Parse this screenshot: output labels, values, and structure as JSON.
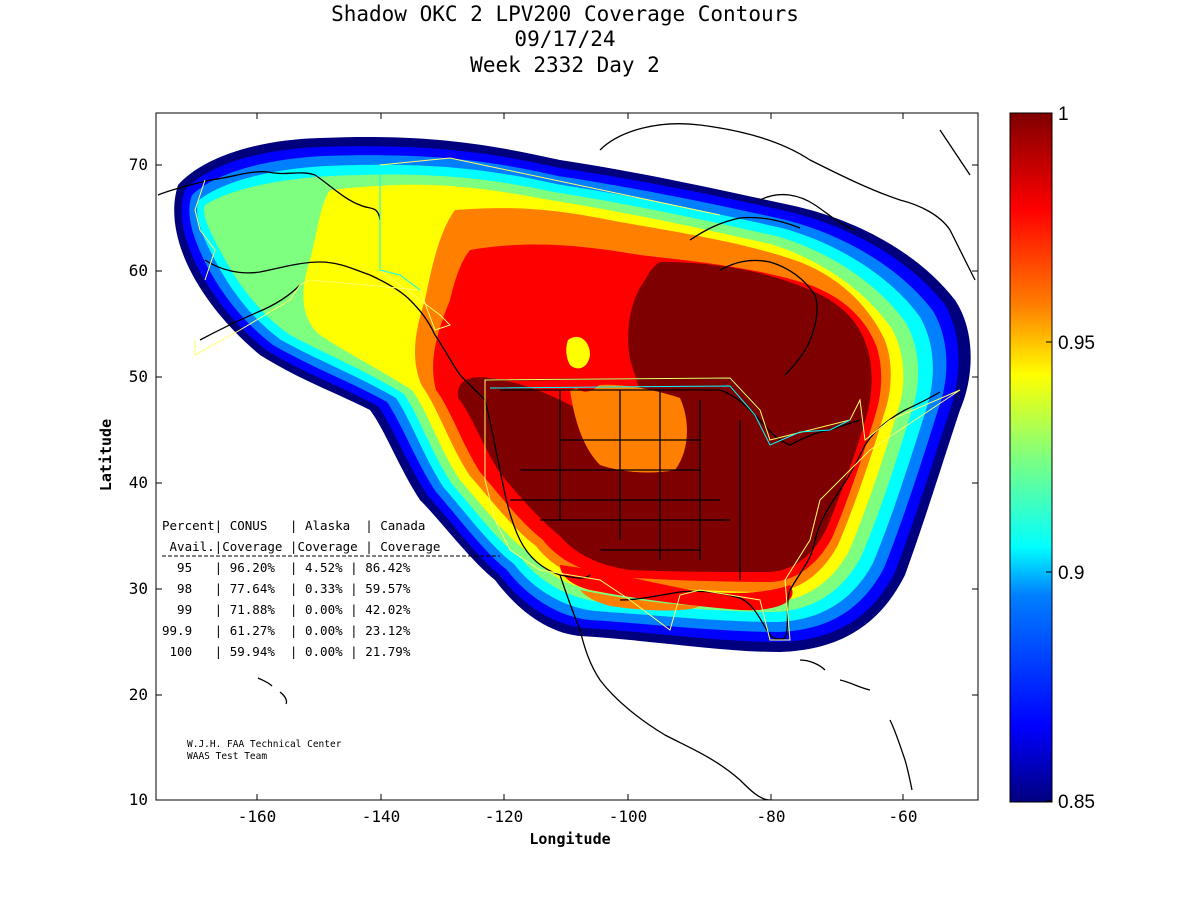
{
  "title": {
    "line1": "Shadow OKC 2 LPV200 Coverage Contours",
    "line2": "09/17/24",
    "line3": "Week 2332 Day 2"
  },
  "axes": {
    "xlabel": "Longitude",
    "ylabel": "Latitude",
    "xticks": [
      "-160",
      "-140",
      "-120",
      "-100",
      "-80",
      "-60"
    ],
    "yticks": [
      "70",
      "60",
      "50",
      "40",
      "30",
      "20",
      "10"
    ],
    "xrange": [
      -175,
      -50
    ],
    "yrange": [
      10,
      75
    ]
  },
  "colorbar": {
    "ticks": [
      "1",
      "0.95",
      "0.9",
      "0.85"
    ],
    "range": [
      0.85,
      1
    ],
    "colors": [
      "#00007f",
      "#0000ff",
      "#007fff",
      "#00ffff",
      "#7fff7f",
      "#ffff00",
      "#ff7f00",
      "#ff0000",
      "#7f0000"
    ]
  },
  "table": {
    "header1": "Percent| CONUS   | Alaska  | Canada",
    "header2": " Avail.|Coverage |Coverage | Coverage",
    "divider": "----------------------------------------",
    "rows": [
      "  95   | 96.20%  | 4.52% | 86.42%",
      "  98   | 77.64%  | 0.33% | 59.57%",
      "  99   | 71.88%  | 0.00% | 42.02%",
      "99.9   | 61.27%  | 0.00% | 23.12%",
      " 100   | 59.94%  | 0.00% | 21.79%"
    ]
  },
  "credit": {
    "line1": "W.J.H. FAA Technical Center",
    "line2": "WAAS Test Team"
  }
}
